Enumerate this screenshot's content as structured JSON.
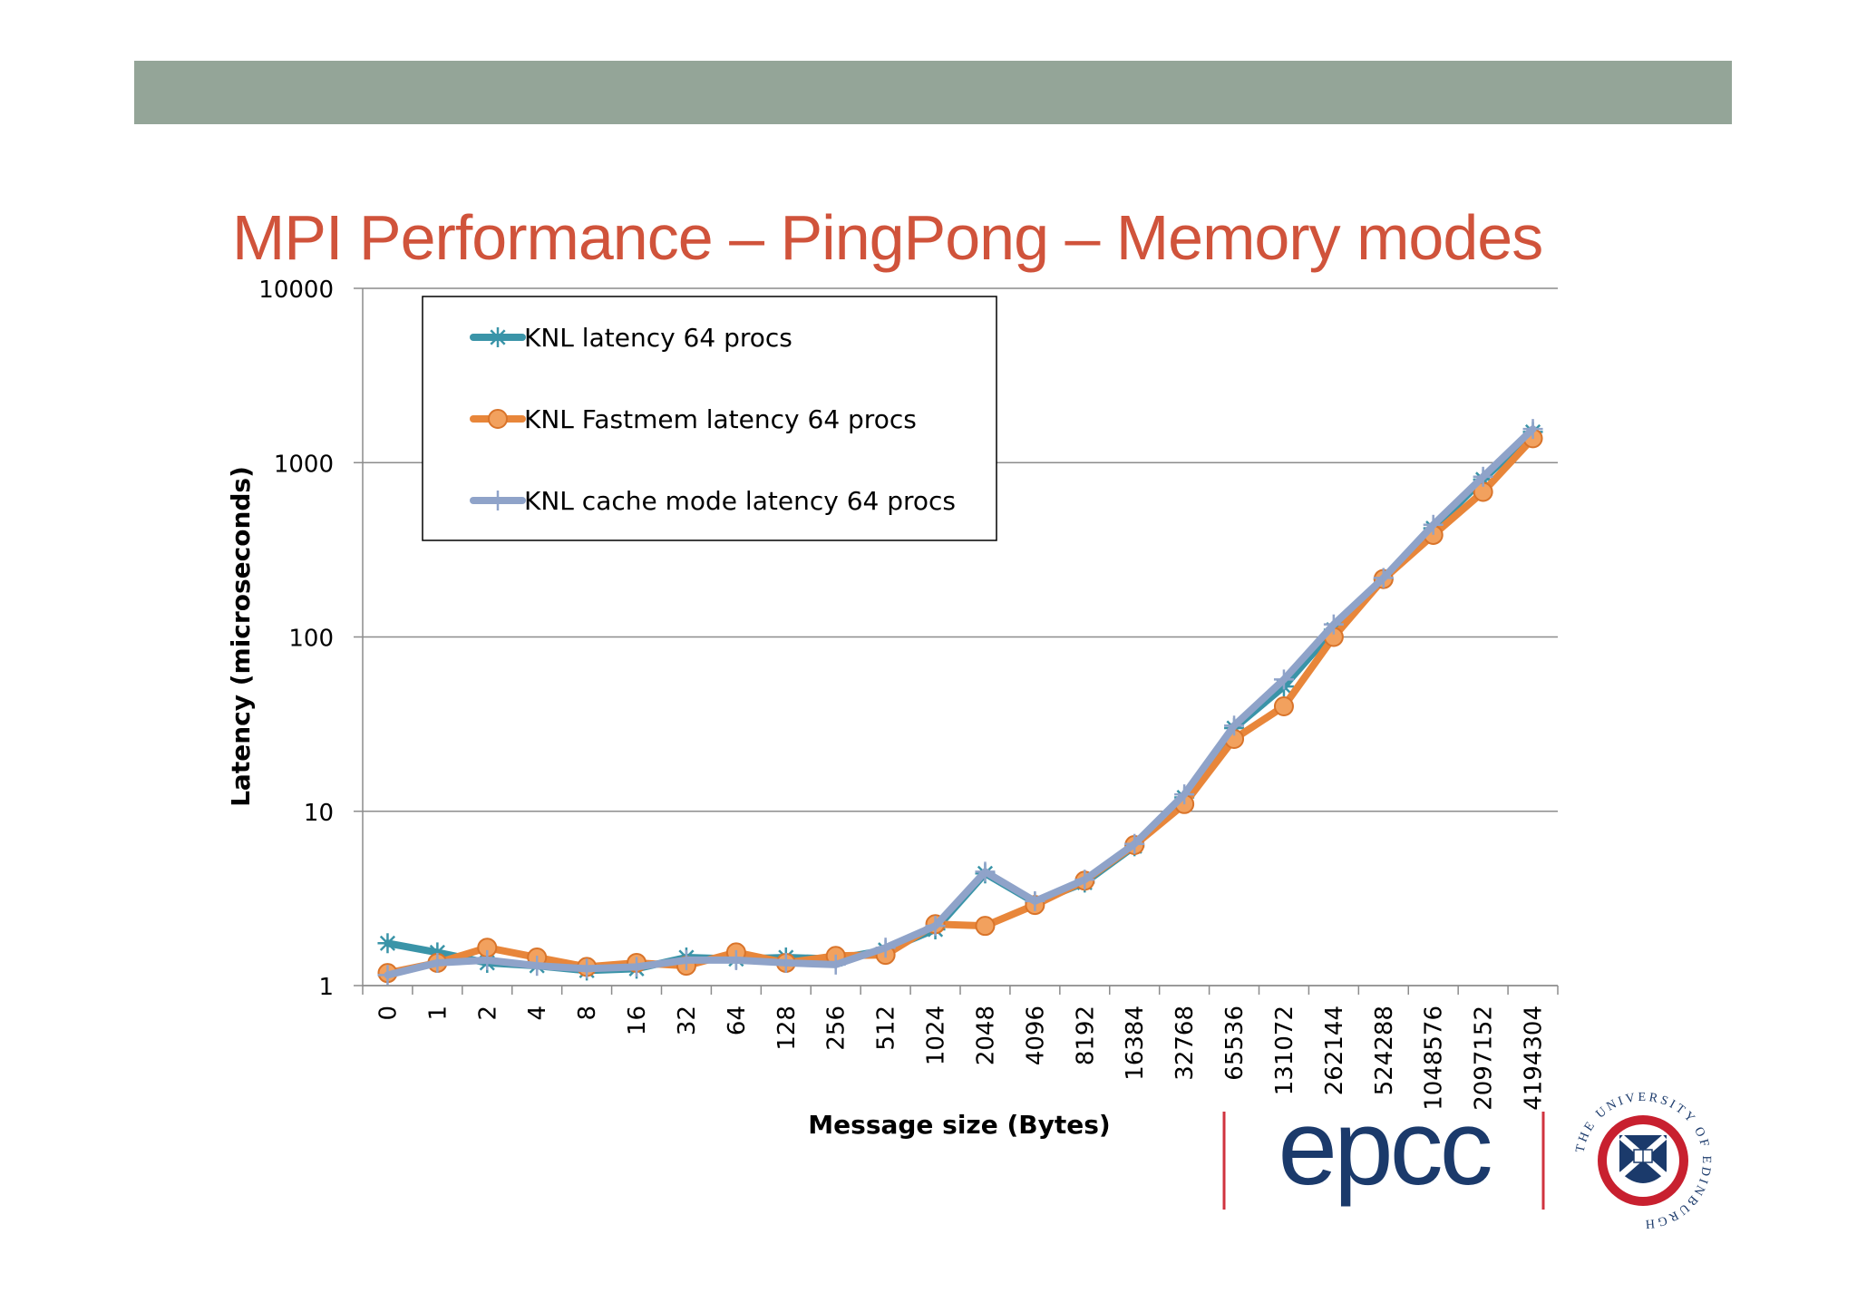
{
  "slide": {
    "title": "MPI Performance – PingPong – Memory modes",
    "band_color": "#94a598",
    "title_color": "#d0533b"
  },
  "logos": {
    "epcc": "epcc",
    "university_seal": "THE UNIVERSITY OF EDINBURGH"
  },
  "chart_data": {
    "type": "line",
    "xlabel": "Message size (Bytes)",
    "ylabel": "Latency (microseconds)",
    "y_scale": "log",
    "ylim": [
      1,
      10000
    ],
    "y_ticks": [
      "1",
      "10",
      "100",
      "1000",
      "10000"
    ],
    "grid": true,
    "legend_position": "top-left",
    "categories": [
      "0",
      "1",
      "2",
      "4",
      "8",
      "16",
      "32",
      "64",
      "128",
      "256",
      "512",
      "1024",
      "2048",
      "4096",
      "8192",
      "16384",
      "32768",
      "65536",
      "131072",
      "262144",
      "524288",
      "1048576",
      "2097152",
      "4194304"
    ],
    "series": [
      {
        "name": "KNL latency 64 procs",
        "color": "#3a94a8",
        "marker": "asterisk",
        "values": [
          1.75,
          1.55,
          1.35,
          1.3,
          1.22,
          1.25,
          1.45,
          1.42,
          1.45,
          1.42,
          1.6,
          2.1,
          4.4,
          3.0,
          3.9,
          6.3,
          12.0,
          30.0,
          52.0,
          110.0,
          215.0,
          420.0,
          800.0,
          1500.0
        ]
      },
      {
        "name": "KNL Fastmem latency 64 procs",
        "color": "#e8863a",
        "marker": "circle",
        "values": [
          1.18,
          1.35,
          1.65,
          1.45,
          1.28,
          1.35,
          1.3,
          1.55,
          1.35,
          1.48,
          1.5,
          2.25,
          2.2,
          2.9,
          4.0,
          6.4,
          11.0,
          26.0,
          40.0,
          100.0,
          215.0,
          385.0,
          680.0,
          1380.0
        ]
      },
      {
        "name": "KNL cache mode latency 64 procs",
        "color": "#8fa3c9",
        "marker": "plus",
        "values": [
          1.15,
          1.35,
          1.4,
          1.3,
          1.25,
          1.28,
          1.4,
          1.4,
          1.35,
          1.32,
          1.65,
          2.2,
          4.5,
          3.05,
          4.05,
          6.5,
          12.5,
          31.0,
          57.0,
          118.0,
          218.0,
          440.0,
          830.0,
          1560.0
        ]
      }
    ]
  }
}
